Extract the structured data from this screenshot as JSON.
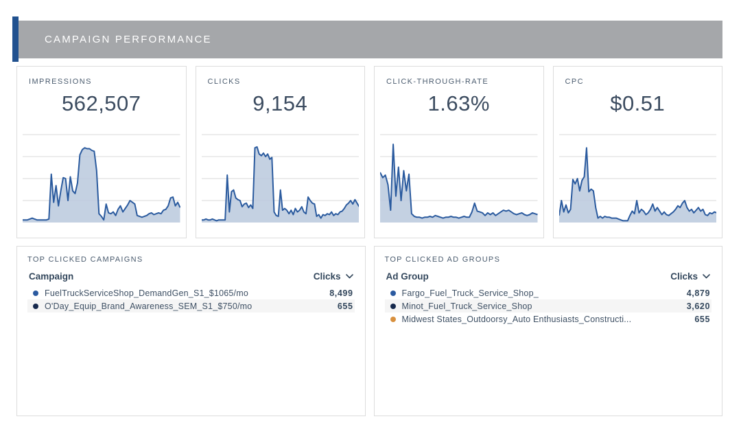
{
  "header": {
    "title": "CAMPAIGN PERFORMANCE"
  },
  "colors": {
    "accent_bar": "#21518f",
    "header_bg": "#a5a7aa",
    "header_text": "#ffffff",
    "card_border": "#dcdcdc",
    "gridline": "#d9d9d9",
    "spark_line": "#2a5a9e",
    "spark_fill": "#bac9dd",
    "label_text": "#4a5b6e",
    "value_text": "#3c4c60",
    "row_alt_bg": "#f5f5f5",
    "dot_blue": "#2b5aa0",
    "dot_navy": "#16294d",
    "dot_orange": "#d8903e"
  },
  "icons": {
    "sort": "chevron-down-icon"
  },
  "kpi_cards": [
    {
      "label": "IMPRESSIONS",
      "value": "562,507"
    },
    {
      "label": "CLICKS",
      "value": "9,154"
    },
    {
      "label": "CLICK-THROUGH-RATE",
      "value": "1.63%"
    },
    {
      "label": "CPC",
      "value": "$0.51"
    }
  ],
  "chart_data": [
    {
      "type": "area",
      "title": "Impressions over time sparkline",
      "xlabel": "",
      "ylabel": "",
      "x_unit": "time (unlabeled)",
      "y_unit": "relative height % (unlabeled axis)",
      "grid": true,
      "legend": "none",
      "values": [
        3,
        3,
        3,
        4,
        5,
        4,
        3,
        3,
        3,
        3,
        3,
        4,
        55,
        23,
        42,
        19,
        36,
        51,
        50,
        25,
        52,
        36,
        33,
        45,
        77,
        83,
        85,
        84,
        84,
        82,
        81,
        59,
        10,
        7,
        3,
        21,
        11,
        10,
        12,
        8,
        15,
        19,
        12,
        16,
        20,
        25,
        23,
        21,
        8,
        7,
        6,
        7,
        8,
        10,
        11,
        9,
        10,
        11,
        10,
        14,
        15,
        19,
        28,
        29,
        19,
        23,
        17
      ]
    },
    {
      "type": "area",
      "title": "Clicks over time sparkline",
      "xlabel": "",
      "ylabel": "",
      "x_unit": "time (unlabeled)",
      "y_unit": "relative height % (unlabeled axis)",
      "grid": true,
      "legend": "none",
      "values": [
        3,
        3,
        4,
        3,
        3,
        4,
        3,
        2,
        3,
        3,
        3,
        3,
        54,
        12,
        35,
        37,
        28,
        26,
        25,
        18,
        21,
        22,
        17,
        20,
        16,
        85,
        86,
        78,
        76,
        79,
        75,
        78,
        72,
        74,
        12,
        8,
        7,
        37,
        14,
        16,
        14,
        10,
        14,
        9,
        16,
        12,
        14,
        18,
        12,
        10,
        29,
        25,
        22,
        21,
        7,
        9,
        5,
        9,
        8,
        10,
        9,
        12,
        8,
        10,
        9,
        12,
        13,
        16,
        20,
        22,
        25,
        21,
        26,
        22,
        18
      ]
    },
    {
      "type": "area",
      "title": "Click-through-rate over time sparkline",
      "xlabel": "",
      "ylabel": "",
      "x_unit": "time (unlabeled)",
      "y_unit": "relative height % (unlabeled axis)",
      "grid": true,
      "legend": "none",
      "values": [
        57,
        51,
        54,
        43,
        14,
        89,
        30,
        63,
        25,
        59,
        36,
        55,
        10,
        7,
        6,
        6,
        5,
        6,
        6,
        7,
        6,
        8,
        7,
        6,
        5,
        6,
        6,
        7,
        6,
        6,
        5,
        6,
        7,
        6,
        6,
        12,
        22,
        13,
        12,
        11,
        8,
        11,
        9,
        11,
        8,
        10,
        12,
        14,
        13,
        14,
        12,
        10,
        9,
        10,
        11,
        9,
        8,
        9,
        11,
        10,
        9
      ]
    },
    {
      "type": "area",
      "title": "CPC over time sparkline",
      "xlabel": "",
      "ylabel": "",
      "x_unit": "time (unlabeled)",
      "y_unit": "relative height % (unlabeled axis)",
      "grid": true,
      "legend": "none",
      "values": [
        8,
        25,
        12,
        20,
        11,
        15,
        49,
        44,
        50,
        36,
        48,
        52,
        85,
        35,
        38,
        36,
        17,
        5,
        7,
        5,
        7,
        6,
        6,
        5,
        5,
        5,
        4,
        3,
        2,
        2,
        2,
        8,
        13,
        10,
        25,
        11,
        15,
        13,
        9,
        11,
        15,
        21,
        13,
        17,
        13,
        9,
        12,
        9,
        8,
        10,
        12,
        15,
        19,
        17,
        22,
        25,
        17,
        13,
        15,
        11,
        14,
        17,
        13,
        15,
        9,
        8,
        11,
        10,
        12,
        11
      ]
    }
  ],
  "tables": [
    {
      "title": "TOP CLICKED CAMPAIGNS",
      "name_header": "Campaign",
      "value_header": "Clicks",
      "rows": [
        {
          "dot_color": "#2b5aa0",
          "label": "FuelTruckServiceShop_DemandGen_S1_$1065/mo",
          "value": "8,499"
        },
        {
          "dot_color": "#16294d",
          "label": "O'Day_Equip_Brand_Awareness_SEM_S1_$750/mo",
          "value": "655"
        }
      ]
    },
    {
      "title": "TOP CLICKED AD GROUPS",
      "name_header": "Ad Group",
      "value_header": "Clicks",
      "rows": [
        {
          "dot_color": "#2b5aa0",
          "label": "Fargo_Fuel_Truck_Service_Shop_",
          "value": "4,879"
        },
        {
          "dot_color": "#16294d",
          "label": "Minot_Fuel_Truck_Service_Shop",
          "value": "3,620"
        },
        {
          "dot_color": "#d8903e",
          "label": "Midwest States_Outdoorsy_Auto Enthusiasts_Constructi...",
          "value": "655"
        }
      ]
    }
  ]
}
